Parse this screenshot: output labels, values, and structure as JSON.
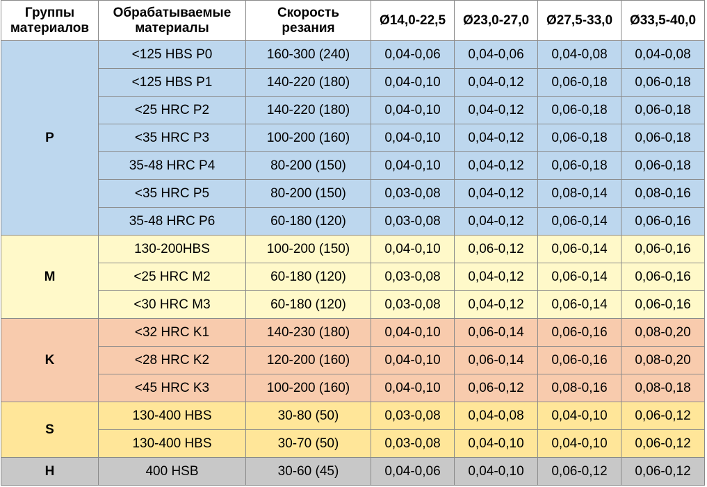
{
  "table": {
    "headers": [
      "Группы\nматериалов",
      "Обрабатываемые\nматериалы",
      "Скорость\nрезания",
      "Ø14,0-22,5",
      "Ø23,0-27,0",
      "Ø27,5-33,0",
      "Ø33,5-40,0"
    ],
    "groups": [
      {
        "name": "P",
        "color": "#bdd7ee",
        "rows": [
          [
            "<125 HBS P0",
            "160-300 (240)",
            "0,04-0,06",
            "0,04-0,06",
            "0,04-0,08",
            "0,04-0,08"
          ],
          [
            "<125 HBS P1",
            "140-220 (180)",
            "0,04-0,10",
            "0,04-0,12",
            "0,06-0,18",
            "0,06-0,18"
          ],
          [
            "<25 HRC P2",
            "140-220 (180)",
            "0,04-0,10",
            "0,04-0,12",
            "0,06-0,18",
            "0,06-0,18"
          ],
          [
            "<35 HRC P3",
            "100-200 (160)",
            "0,04-0,10",
            "0,04-0,12",
            "0,06-0,18",
            "0,06-0,18"
          ],
          [
            "35-48 HRC P4",
            "80-200 (150)",
            "0,04-0,10",
            "0,04-0,12",
            "0,06-0,18",
            "0,06-0,18"
          ],
          [
            "<35 HRC P5",
            "80-200 (150)",
            "0,03-0,08",
            "0,04-0,12",
            "0,08-0,14",
            "0,08-0,16"
          ],
          [
            "35-48 HRC P6",
            "60-180 (120)",
            "0,03-0,08",
            "0,04-0,12",
            "0,06-0,14",
            "0,06-0,16"
          ]
        ]
      },
      {
        "name": "M",
        "color": "#fff9c9",
        "rows": [
          [
            "130-200HBS",
            "100-200 (150)",
            "0,04-0,10",
            "0,06-0,12",
            "0,06-0,14",
            "0,06-0,16"
          ],
          [
            "<25 HRC M2",
            "60-180 (120)",
            "0,03-0,08",
            "0,04-0,12",
            "0,06-0,14",
            "0,06-0,16"
          ],
          [
            "<30 HRC M3",
            "60-180 (120)",
            "0,03-0,08",
            "0,04-0,12",
            "0,06-0,14",
            "0,06-0,16"
          ]
        ]
      },
      {
        "name": "K",
        "color": "#f8cbad",
        "rows": [
          [
            "<32 HRC K1",
            "140-230 (180)",
            "0,04-0,10",
            "0,06-0,14",
            "0,06-0,16",
            "0,08-0,20"
          ],
          [
            "<28 HRC K2",
            "120-200 (160)",
            "0,04-0,10",
            "0,06-0,14",
            "0,06-0,16",
            "0,08-0,20"
          ],
          [
            "<45 HRC K3",
            "100-200 (160)",
            "0,04-0,10",
            "0,06-0,12",
            "0,08-0,16",
            "0,08-0,18"
          ]
        ]
      },
      {
        "name": "S",
        "color": "#ffe699",
        "rows": [
          [
            "130-400 HBS",
            "30-80 (50)",
            "0,03-0,08",
            "0,04-0,08",
            "0,04-0,10",
            "0,06-0,12"
          ],
          [
            "130-400 HBS",
            "30-70 (50)",
            "0,03-0,08",
            "0,04-0,10",
            "0,04-0,10",
            "0,06-0,12"
          ]
        ]
      },
      {
        "name": "H",
        "color": "#c8c8c8",
        "rows": [
          [
            "400 HSB",
            "30-60 (45)",
            "0,04-0,06",
            "0,04-0,10",
            "0,06-0,12",
            "0,06-0,12"
          ]
        ]
      }
    ]
  }
}
